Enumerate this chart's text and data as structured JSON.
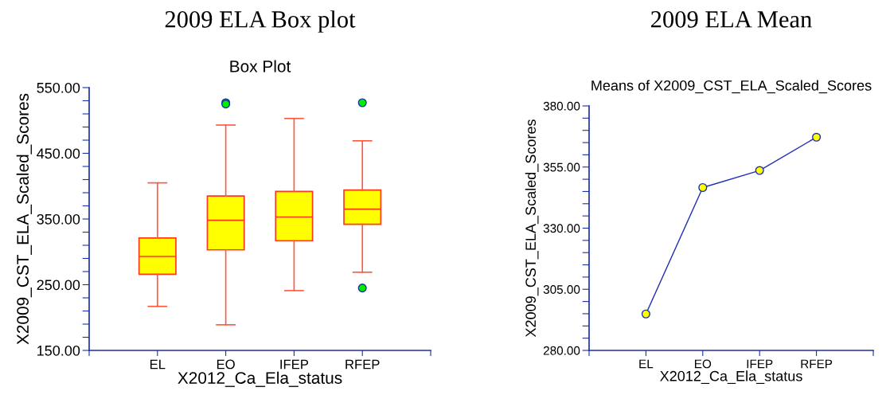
{
  "chart_data": [
    {
      "type": "box",
      "title": "2009 ELA Box plot",
      "subtitle": "Box Plot",
      "xlabel": "X2012_Ca_Ela_status",
      "ylabel": "X2009_CST_ELA_Scaled_Scores",
      "categories": [
        "EL",
        "EO",
        "IFEP",
        "RFEP"
      ],
      "series": [
        {
          "color": "#ffff00",
          "boxes": [
            {
              "low": 217,
              "q1": 266,
              "median": 293,
              "q3": 321,
              "high": 405
            },
            {
              "low": 189,
              "q1": 303,
              "median": 348,
              "q3": 385,
              "high": 493,
              "outliers": [
                527,
                525
              ]
            },
            {
              "low": 241,
              "q1": 317,
              "median": 353,
              "q3": 392,
              "high": 503
            },
            {
              "low": 269,
              "q1": 342,
              "median": 365,
              "q3": 394,
              "high": 469,
              "outliers": [
                527,
                245
              ]
            }
          ]
        }
      ],
      "ylim": [
        150,
        550
      ],
      "yticks": [
        {
          "value": 150,
          "label": "150.00"
        },
        {
          "value": 170,
          "label": null
        },
        {
          "value": 190,
          "label": null
        },
        {
          "value": 210,
          "label": null
        },
        {
          "value": 230,
          "label": null
        },
        {
          "value": 250,
          "label": "250.00"
        },
        {
          "value": 270,
          "label": null
        },
        {
          "value": 290,
          "label": null
        },
        {
          "value": 310,
          "label": null
        },
        {
          "value": 330,
          "label": null
        },
        {
          "value": 350,
          "label": "350.00"
        },
        {
          "value": 370,
          "label": null
        },
        {
          "value": 390,
          "label": null
        },
        {
          "value": 410,
          "label": null
        },
        {
          "value": 430,
          "label": null
        },
        {
          "value": 450,
          "label": "450.00"
        },
        {
          "value": 470,
          "label": null
        },
        {
          "value": 490,
          "label": null
        },
        {
          "value": 510,
          "label": null
        },
        {
          "value": 530,
          "label": null
        },
        {
          "value": 550,
          "label": "550.00"
        }
      ]
    },
    {
      "type": "line",
      "title": "2009 ELA Mean",
      "subtitle": "Means of X2009_CST_ELA_Scaled_Scores",
      "xlabel": "X2012_Ca_Ela_status",
      "ylabel": "X2009_CST_ELA_Scaled_Scores",
      "categories": [
        "EL",
        "EO",
        "IFEP",
        "RFEP"
      ],
      "series": [
        {
          "color": "#2030b0",
          "colors": [
            "#ffff00",
            "#ffff00",
            "#ffff00",
            "#ffff00"
          ],
          "values": [
            294.9,
            346.6,
            353.6,
            367.2
          ]
        }
      ],
      "marker": "circle",
      "ylim": [
        280,
        380
      ],
      "yticks": [
        {
          "value": 280,
          "label": "280.00"
        },
        {
          "value": 285,
          "label": null
        },
        {
          "value": 290,
          "label": null
        },
        {
          "value": 295,
          "label": null
        },
        {
          "value": 300,
          "label": null
        },
        {
          "value": 305,
          "label": "305.00"
        },
        {
          "value": 310,
          "label": null
        },
        {
          "value": 315,
          "label": null
        },
        {
          "value": 320,
          "label": null
        },
        {
          "value": 325,
          "label": null
        },
        {
          "value": 330,
          "label": "330.00"
        },
        {
          "value": 335,
          "label": null
        },
        {
          "value": 340,
          "label": null
        },
        {
          "value": 345,
          "label": null
        },
        {
          "value": 350,
          "label": null
        },
        {
          "value": 355,
          "label": "355.00"
        },
        {
          "value": 360,
          "label": null
        },
        {
          "value": 365,
          "label": null
        },
        {
          "value": 370,
          "label": null
        },
        {
          "value": 375,
          "label": null
        },
        {
          "value": 380,
          "label": "380.00"
        }
      ]
    }
  ]
}
